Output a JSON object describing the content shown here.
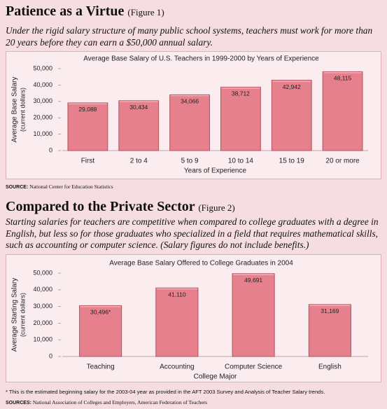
{
  "sections": [
    {
      "heading": "Patience as a Virtue",
      "figure_label": "(Figure 1)",
      "caption": "Under the rigid salary structure of many public school systems, teachers must work for more than 20 years before they can earn a $50,000 annual salary.",
      "source_label": "SOURCE:",
      "source": "National Center for Education Statistics"
    },
    {
      "heading": "Compared to the Private Sector",
      "figure_label": "(Figure 2)",
      "caption": "Starting salaries for teachers are competitive when compared to college graduates with a degree in English, but less so for those graduates who specialized in a field that requires mathematical skills, such as accounting or computer science. (Salary figures do not include benefits.)",
      "footnote": "* This is the estimated beginning salary for the 2003-04 year as provided in the AFT 2003 Survey and Analysis of Teacher Salary trends.",
      "source_label": "SOURCES:",
      "source": "National Association of Colleges and Employers, American Federation of Teachers"
    }
  ],
  "chart_data": [
    {
      "type": "bar",
      "title": "Average Base Salary of U.S. Teachers in 1999-2000 by Years of Experience",
      "ylabel": "Average Base Salary",
      "ylabel_sub": "(current dollars)",
      "xlabel": "Years of Experience",
      "categories": [
        "First",
        "2 to 4",
        "5 to 9",
        "10 to 14",
        "15 to 19",
        "20 or more"
      ],
      "values": [
        29088,
        30434,
        34066,
        38712,
        42942,
        48115
      ],
      "value_labels": [
        "29,088",
        "30,434",
        "34,066",
        "38,712",
        "42,942",
        "48,115"
      ],
      "color": "#e5808c",
      "ylim": [
        0,
        50000
      ],
      "yticks": [
        0,
        {
          "value": 10000,
          "label": "10,000"
        },
        {
          "value": 20000,
          "label": "20,000"
        },
        {
          "value": 30000,
          "label": "30,000"
        },
        {
          "value": 40000,
          "label": "40,000"
        },
        {
          "value": 50000,
          "label": "50,000"
        }
      ]
    },
    {
      "type": "bar",
      "title": "Average Base Salary Offered to College Graduates in 2004",
      "ylabel": "Average Starting Salary",
      "ylabel_sub": "(current dollars)",
      "xlabel": "College Major",
      "categories": [
        "Teaching",
        "Accounting",
        "Computer Science",
        "English"
      ],
      "values": [
        30496,
        41110,
        49691,
        31169
      ],
      "value_labels": [
        "30,496*",
        "41,110",
        "49,691",
        "31,169"
      ],
      "color": "#e5808c",
      "ylim": [
        0,
        50000
      ],
      "yticks": [
        0,
        {
          "value": 10000,
          "label": "10,000"
        },
        {
          "value": 20000,
          "label": "20,000"
        },
        {
          "value": 30000,
          "label": "30,000"
        },
        {
          "value": 40000,
          "label": "40,000"
        },
        {
          "value": 50000,
          "label": "50,000"
        }
      ]
    }
  ]
}
